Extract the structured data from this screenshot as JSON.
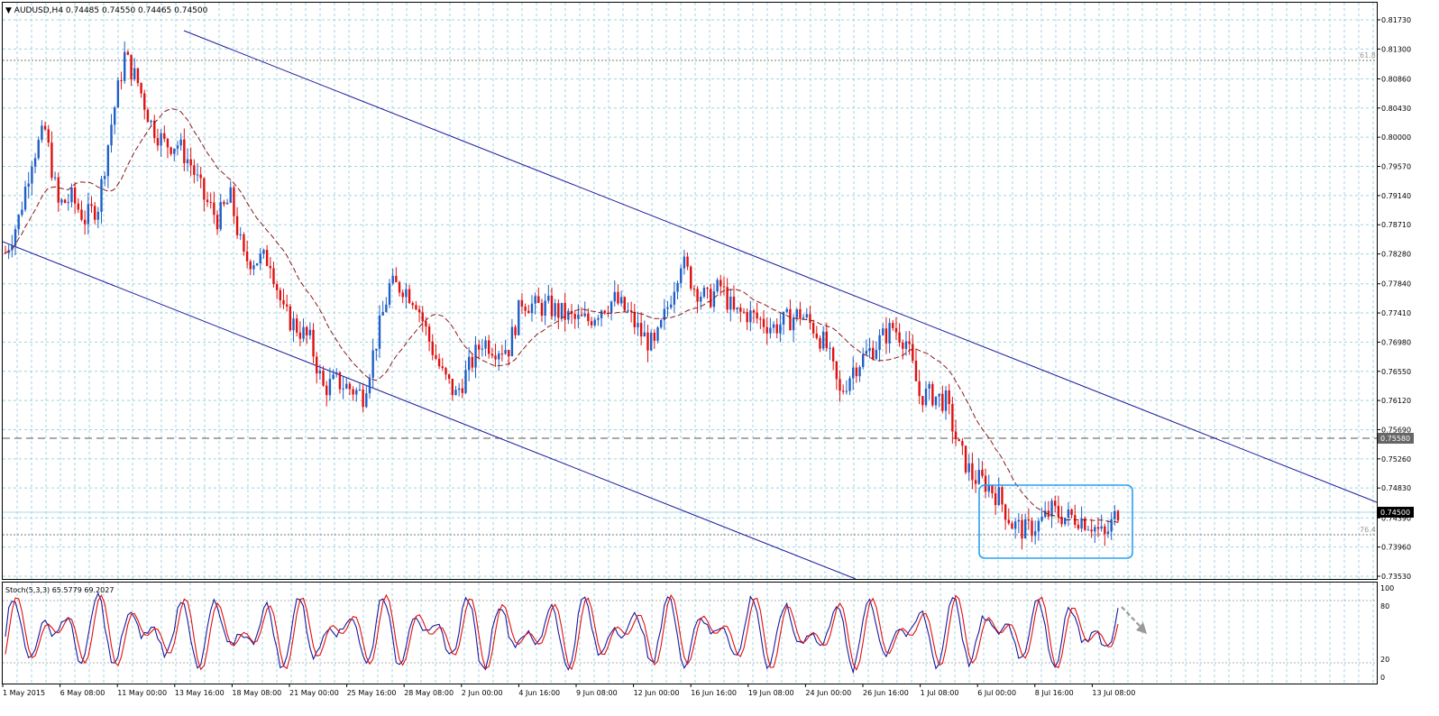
{
  "header": {
    "symbol_label": "▼ AUDUSD,H4  0.74485 0.74550 0.74465 0.74500"
  },
  "price_axis": {
    "ticks": [
      "0.81730",
      "0.81300",
      "0.80860",
      "0.80430",
      "0.80000",
      "0.79570",
      "0.79140",
      "0.78710",
      "0.78280",
      "0.77840",
      "0.77410",
      "0.76980",
      "0.76550",
      "0.76120",
      "0.75690",
      "0.75260",
      "0.74830",
      "0.74390",
      "0.73960",
      "0.73530"
    ],
    "marker_level": "0.75580",
    "current_price": "0.74500"
  },
  "fib_labels": {
    "upper": "61.8",
    "lower": "76.4"
  },
  "stoch": {
    "label": "Stoch(5,3,3) 65.5779 69.2027",
    "ticks": [
      "100",
      "80",
      "20",
      "0"
    ]
  },
  "time_axis": {
    "labels": [
      "1 May 2015",
      "6 May 08:00",
      "11 May 00:00",
      "13 May 16:00",
      "18 May 08:00",
      "21 May 00:00",
      "25 May 16:00",
      "28 May 08:00",
      "2 Jun 00:00",
      "4 Jun 16:00",
      "9 Jun 08:00",
      "12 Jun 00:00",
      "16 Jun 16:00",
      "19 Jun 08:00",
      "24 Jun 00:00",
      "26 Jun 16:00",
      "1 Jul 08:00",
      "6 Jul 00:00",
      "8 Jul 16:00",
      "13 Jul 08:00"
    ]
  },
  "colors": {
    "bull_candle": "#1f5fc8",
    "bear_candle": "#e01010",
    "moving_average": "#8b1a1a",
    "channel": "#1a1a9c",
    "range_box": "#2aa0f0",
    "stoch_main": "#1a1a9c",
    "stoch_signal": "#e01010",
    "grid": "#9fd4e0"
  },
  "chart_data": {
    "type": "candlestick",
    "symbol": "AUDUSD",
    "timeframe": "H4",
    "ohlc_last": {
      "open": 0.74485,
      "high": 0.7455,
      "low": 0.74465,
      "close": 0.745
    },
    "ylim": [
      0.7353,
      0.8173
    ],
    "grid": true,
    "close_path": [
      [
        0,
        0.783
      ],
      [
        4,
        0.788
      ],
      [
        8,
        0.797
      ],
      [
        12,
        0.801
      ],
      [
        16,
        0.79
      ],
      [
        20,
        0.791
      ],
      [
        24,
        0.788
      ],
      [
        28,
        0.79
      ],
      [
        32,
        0.802
      ],
      [
        36,
        0.812
      ],
      [
        40,
        0.808
      ],
      [
        44,
        0.802
      ],
      [
        48,
        0.799
      ],
      [
        52,
        0.799
      ],
      [
        56,
        0.796
      ],
      [
        60,
        0.791
      ],
      [
        64,
        0.788
      ],
      [
        68,
        0.791
      ],
      [
        72,
        0.782
      ],
      [
        76,
        0.782
      ],
      [
        80,
        0.782
      ],
      [
        84,
        0.774
      ],
      [
        88,
        0.772
      ],
      [
        92,
        0.77
      ],
      [
        96,
        0.763
      ],
      [
        100,
        0.764
      ],
      [
        104,
        0.763
      ],
      [
        108,
        0.762
      ],
      [
        112,
        0.77
      ],
      [
        116,
        0.778
      ],
      [
        120,
        0.778
      ],
      [
        124,
        0.776
      ],
      [
        128,
        0.77
      ],
      [
        132,
        0.765
      ],
      [
        136,
        0.762
      ],
      [
        140,
        0.766
      ],
      [
        144,
        0.77
      ],
      [
        148,
        0.769
      ],
      [
        152,
        0.769
      ],
      [
        156,
        0.776
      ],
      [
        160,
        0.775
      ],
      [
        164,
        0.775
      ],
      [
        168,
        0.774
      ],
      [
        172,
        0.773
      ],
      [
        176,
        0.773
      ],
      [
        180,
        0.775
      ],
      [
        184,
        0.776
      ],
      [
        188,
        0.774
      ],
      [
        192,
        0.771
      ],
      [
        196,
        0.769
      ],
      [
        200,
        0.775
      ],
      [
        204,
        0.782
      ],
      [
        208,
        0.778
      ],
      [
        212,
        0.776
      ],
      [
        216,
        0.778
      ],
      [
        220,
        0.774
      ],
      [
        224,
        0.774
      ],
      [
        228,
        0.773
      ],
      [
        232,
        0.772
      ],
      [
        236,
        0.773
      ],
      [
        240,
        0.774
      ],
      [
        244,
        0.772
      ],
      [
        248,
        0.769
      ],
      [
        252,
        0.762
      ],
      [
        256,
        0.766
      ],
      [
        260,
        0.768
      ],
      [
        264,
        0.77
      ],
      [
        268,
        0.772
      ],
      [
        272,
        0.77
      ],
      [
        276,
        0.762
      ],
      [
        280,
        0.762
      ],
      [
        284,
        0.761
      ],
      [
        288,
        0.754
      ],
      [
        292,
        0.75
      ],
      [
        296,
        0.749
      ],
      [
        300,
        0.747
      ],
      [
        304,
        0.743
      ],
      [
        308,
        0.742
      ],
      [
        312,
        0.743
      ],
      [
        316,
        0.745
      ],
      [
        320,
        0.744
      ],
      [
        324,
        0.744
      ],
      [
        328,
        0.743
      ],
      [
        332,
        0.741
      ],
      [
        336,
        0.745
      ]
    ]
  }
}
